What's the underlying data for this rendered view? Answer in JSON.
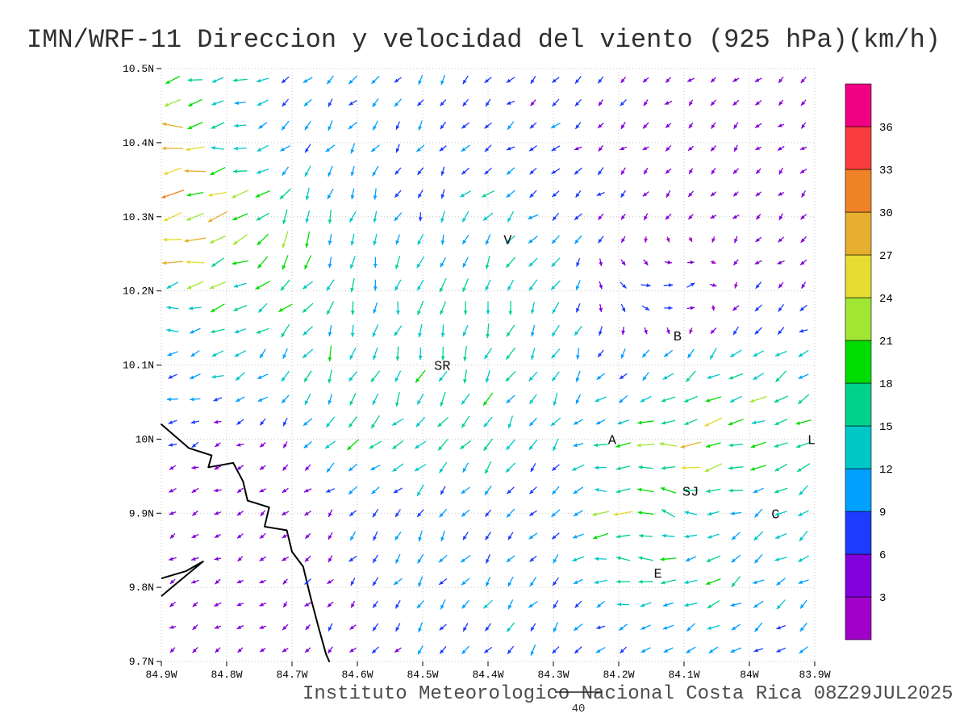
{
  "title": "IMN/WRF-11 Direccion y velocidad del viento (925 hPa)(km/h)",
  "footer": {
    "institute_line": "Instituto Meteorologico Nacional Costa Rica 08Z29JUL2025",
    "ref_vector_label": "40"
  },
  "chart_data": {
    "type": "vector-field",
    "title": "IMN/WRF-11 Direccion y velocidad del viento (925 hPa)(km/h)",
    "x_axis": {
      "ticks": [
        "84.9W",
        "84.8W",
        "84.7W",
        "84.6W",
        "84.5W",
        "84.4W",
        "84.3W",
        "84.2W",
        "84.1W",
        "84W",
        "83.9W"
      ],
      "range": [
        84.9,
        83.9
      ]
    },
    "y_axis": {
      "ticks": [
        "10.5N",
        "10.4N",
        "10.3N",
        "10.2N",
        "10.1N",
        "10N",
        "9.9N",
        "9.8N",
        "9.7N"
      ],
      "range": [
        10.5,
        9.7
      ]
    },
    "colorbar": {
      "levels": [
        3,
        6,
        9,
        12,
        15,
        18,
        21,
        24,
        27,
        30,
        33,
        36
      ],
      "colors": [
        "#a000c8",
        "#8200dc",
        "#1e3cff",
        "#00a0ff",
        "#00c8c8",
        "#00d28c",
        "#00dc00",
        "#a0e632",
        "#e6dc32",
        "#e6af2d",
        "#f08228",
        "#fa3c3c",
        "#f00082"
      ],
      "units": "km/h"
    },
    "reference_vector": {
      "speed": 40,
      "label": "40"
    },
    "stations": [
      {
        "label": "V",
        "lon": 84.37,
        "lat": 10.27
      },
      {
        "label": "B",
        "lon": 84.11,
        "lat": 10.14
      },
      {
        "label": "SR",
        "lon": 84.47,
        "lat": 10.1
      },
      {
        "label": "A",
        "lon": 84.21,
        "lat": 10.0
      },
      {
        "label": "SJ",
        "lon": 84.09,
        "lat": 9.93
      },
      {
        "label": "C",
        "lon": 83.96,
        "lat": 9.9
      },
      {
        "label": "E",
        "lon": 84.14,
        "lat": 9.82
      },
      {
        "label": "L",
        "lon": 83.905,
        "lat": 10.0
      }
    ],
    "coastline": [
      [
        84.9,
        10.02
      ],
      [
        84.858,
        9.988
      ],
      [
        84.823,
        9.978
      ],
      [
        84.828,
        9.962
      ],
      [
        84.79,
        9.968
      ],
      [
        84.775,
        9.943
      ],
      [
        84.768,
        9.917
      ],
      [
        84.735,
        9.908
      ],
      [
        84.742,
        9.882
      ],
      [
        84.708,
        9.877
      ],
      [
        84.7,
        9.848
      ],
      [
        84.683,
        9.828
      ],
      [
        84.672,
        9.788
      ],
      [
        84.66,
        9.748
      ],
      [
        84.648,
        9.71
      ],
      [
        84.643,
        9.7
      ]
    ],
    "islands": [
      [
        [
          84.9,
          9.812
        ],
        [
          84.862,
          9.822
        ],
        [
          84.836,
          9.835
        ],
        [
          84.884,
          9.8
        ],
        [
          84.9,
          9.788
        ]
      ]
    ],
    "wind_grid": {
      "lons": [
        84.9,
        84.8,
        84.7,
        84.6,
        84.5,
        84.4,
        84.3,
        84.2,
        84.1,
        84.0,
        83.9
      ],
      "lats": [
        10.5,
        10.4,
        10.3,
        10.2,
        10.1,
        10.0,
        9.9,
        9.8,
        9.7
      ],
      "u": [
        [
          -18,
          -14,
          -8,
          -7,
          -6,
          -5,
          -5,
          -4,
          -4,
          -4,
          -4
        ],
        [
          -26,
          -16,
          -6,
          -5,
          -4,
          -6,
          -7,
          -4,
          -3,
          -3,
          -3
        ],
        [
          -30,
          -20,
          -8,
          -4,
          -3,
          -10,
          -8,
          -4,
          -3,
          -3,
          -3
        ],
        [
          -18,
          -16,
          -12,
          -4,
          -3,
          -4,
          -6,
          6,
          10,
          -4,
          -4
        ],
        [
          -12,
          -10,
          -6,
          -6,
          -4,
          -6,
          -6,
          -4,
          -8,
          -14,
          -10
        ],
        [
          -5,
          -4,
          -4,
          -12,
          -12,
          -8,
          -6,
          -16,
          -24,
          -20,
          -14
        ],
        [
          -4,
          -4,
          -4,
          -5,
          -5,
          -5,
          -6,
          -22,
          -16,
          -10,
          -10
        ],
        [
          -4,
          -4,
          -3,
          -4,
          -5,
          -6,
          -6,
          -12,
          -14,
          -12,
          -8
        ],
        [
          -3,
          -3,
          -3,
          -4,
          -5,
          -6,
          -5,
          -6,
          -8,
          -8,
          -6
        ]
      ],
      "v": [
        [
          -5,
          -5,
          -6,
          -6,
          -7,
          -6,
          -5,
          -4,
          -3,
          -3,
          -3
        ],
        [
          -3,
          -2,
          -8,
          -7,
          -6,
          -5,
          -4,
          -3,
          -3,
          -3,
          -2
        ],
        [
          -8,
          -10,
          -16,
          -10,
          -8,
          -10,
          -6,
          -4,
          -3,
          -3,
          -3
        ],
        [
          -2,
          -6,
          -14,
          -12,
          -14,
          -14,
          -10,
          -6,
          4,
          -4,
          -3
        ],
        [
          -2,
          -4,
          -10,
          -16,
          -16,
          -14,
          -10,
          -8,
          -8,
          -10,
          -6
        ],
        [
          -2,
          -2,
          -4,
          -10,
          -10,
          -12,
          -10,
          -2,
          -4,
          -4,
          -4
        ],
        [
          -2,
          -2,
          -3,
          -6,
          -8,
          -8,
          -6,
          2,
          4,
          -6,
          -8
        ],
        [
          -2,
          -2,
          -3,
          -5,
          -7,
          -8,
          -6,
          -2,
          -6,
          -8,
          -6
        ],
        [
          -2,
          -2,
          -3,
          -4,
          -6,
          -8,
          -8,
          -6,
          -6,
          -5,
          -4
        ]
      ]
    }
  }
}
